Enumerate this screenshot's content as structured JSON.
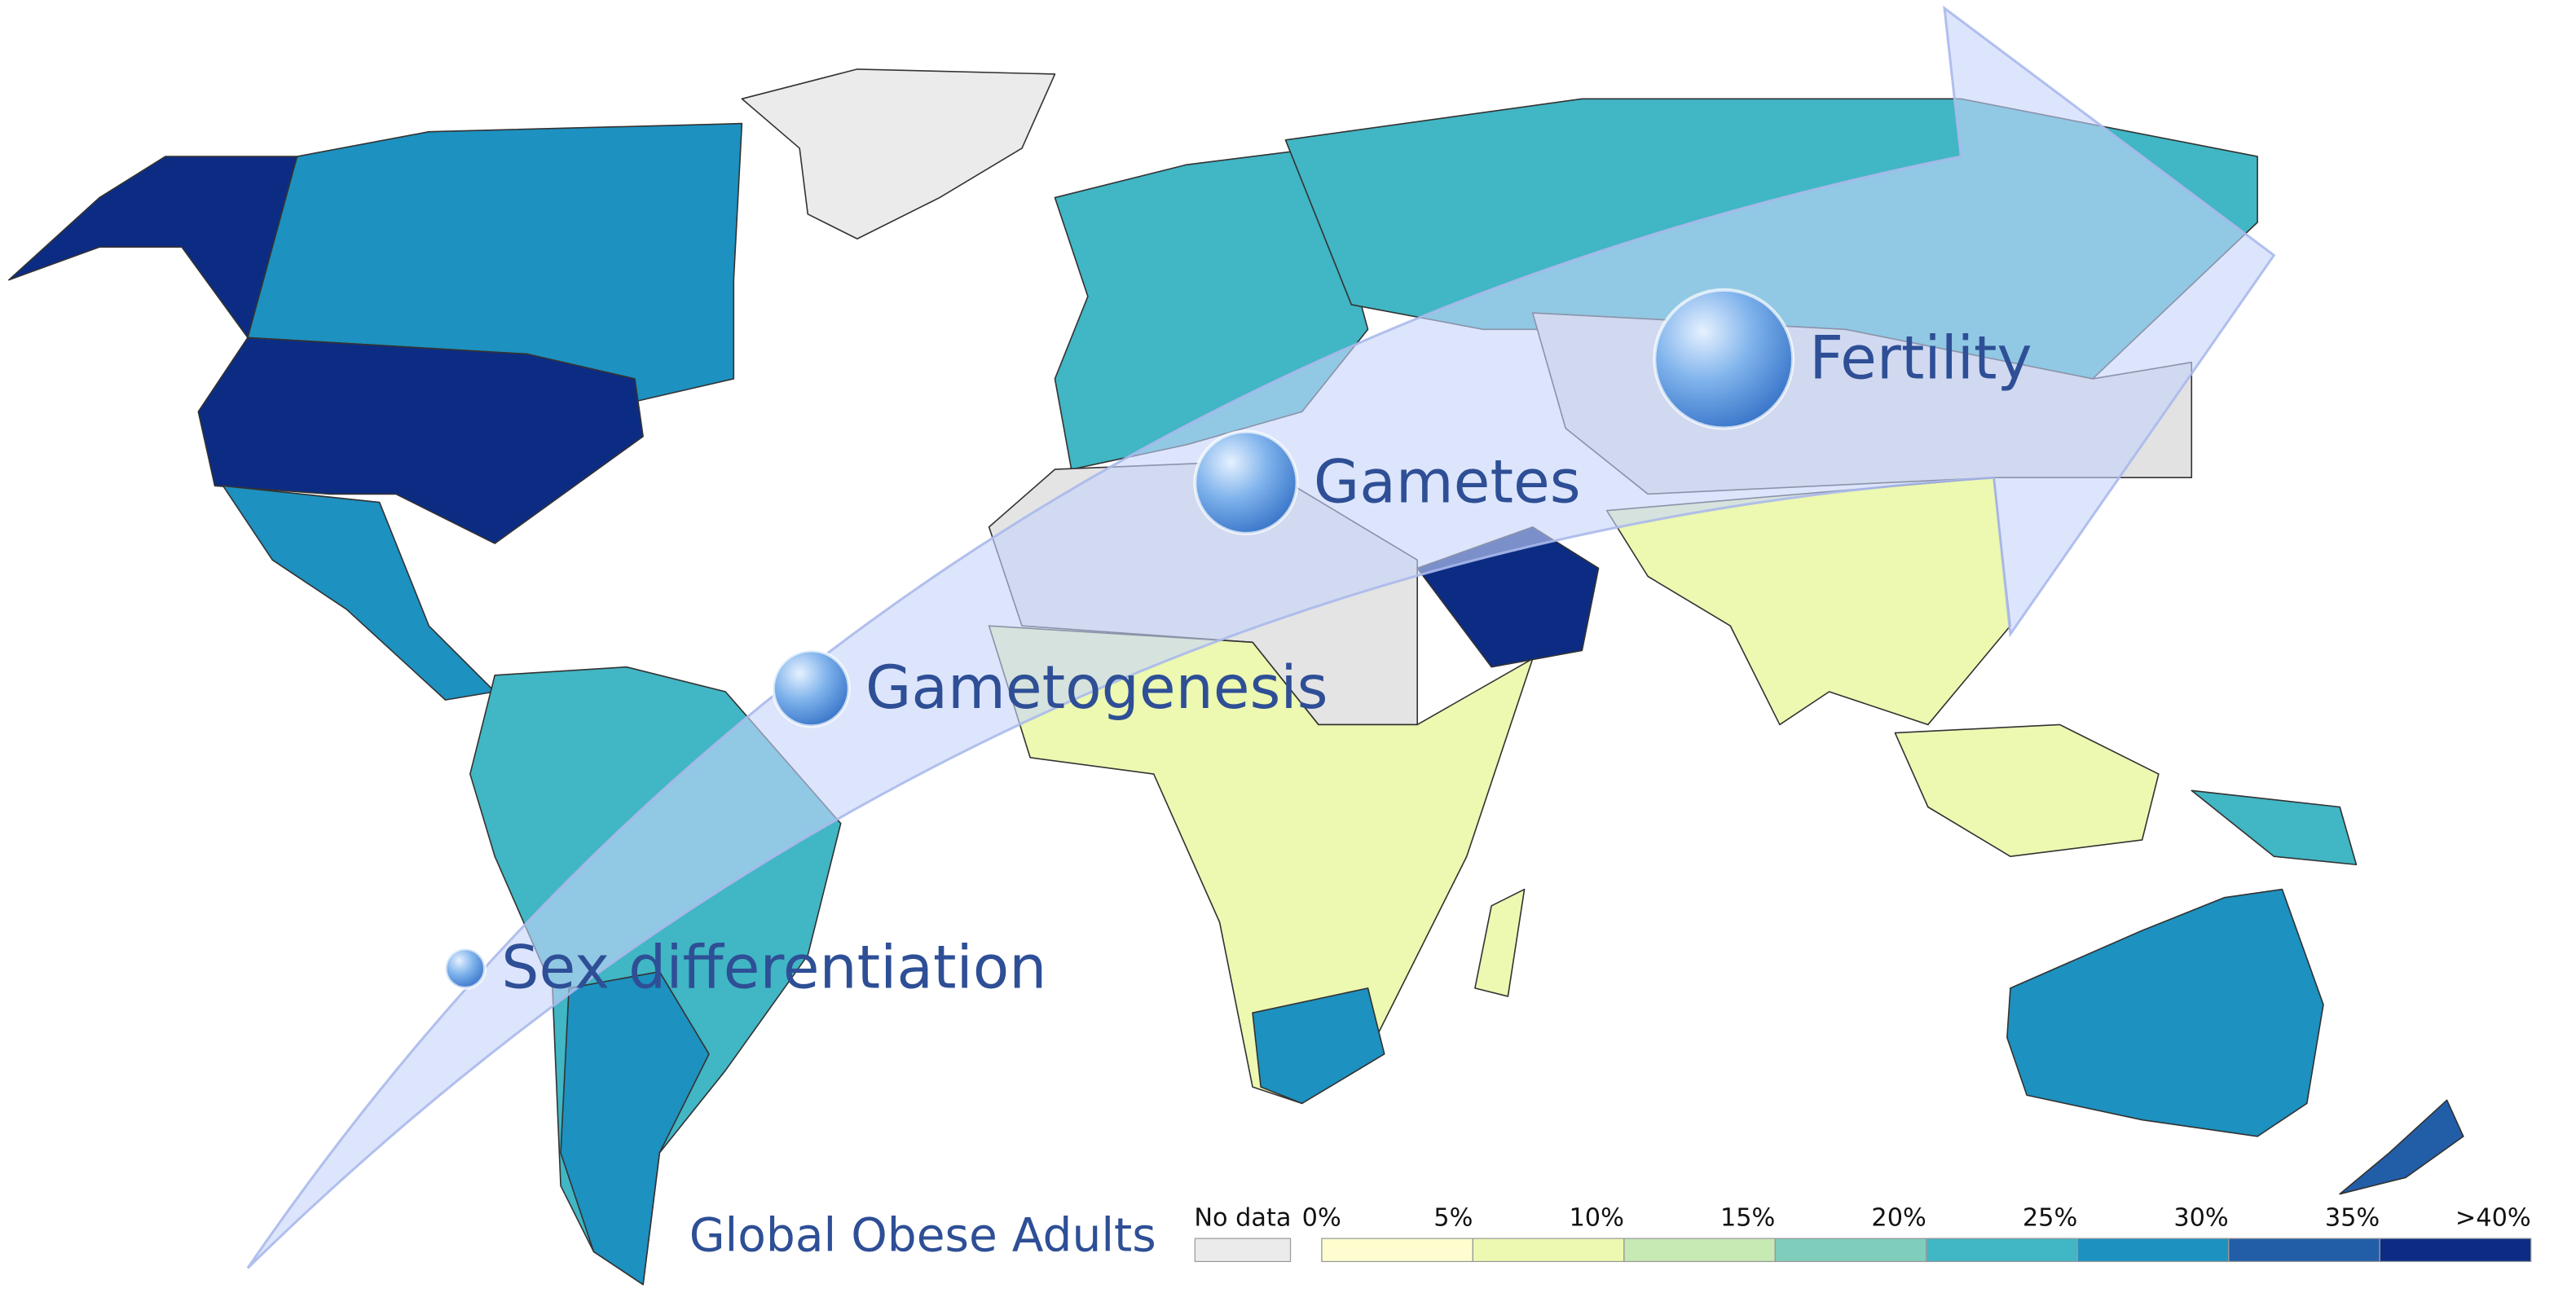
{
  "title": "Global Obese Adults",
  "stages": [
    "Sex differentiation",
    "Gametogenesis",
    "Gametes",
    "Fertility"
  ],
  "legend": {
    "no_data": "No data",
    "no_data_color": "#ebebeb",
    "ticks": [
      {
        "value": 0,
        "label": "0%"
      },
      {
        "value": 5,
        "label": "5%"
      },
      {
        "value": 10,
        "label": "10%"
      },
      {
        "value": 15,
        "label": "15%"
      },
      {
        "value": 20,
        "label": "20%"
      },
      {
        "value": 25,
        "label": "25%"
      },
      {
        "value": 30,
        "label": "30%"
      },
      {
        "value": 35,
        "label": "35%"
      },
      {
        "value": 40,
        "label": ">40%"
      }
    ],
    "colors": [
      "#fdfdcf",
      "#edf8b1",
      "#c7e9b4",
      "#7fcdbb",
      "#41b6c4",
      "#1d91c0",
      "#225ea8",
      "#0c2c84"
    ]
  }
}
